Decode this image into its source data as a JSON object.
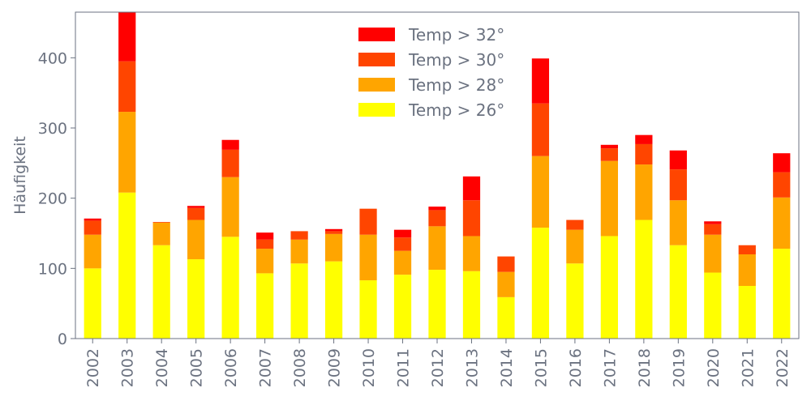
{
  "chart_data": {
    "type": "bar",
    "stacked": true,
    "ylabel": "Häufigkeit",
    "xlabel": "",
    "ylim": [
      0,
      465
    ],
    "yticks": [
      0,
      100,
      200,
      300,
      400
    ],
    "grid": false,
    "legend_position": "top-center",
    "categories": [
      "2002",
      "2003",
      "2004",
      "2005",
      "2006",
      "2007",
      "2008",
      "2009",
      "2010",
      "2011",
      "2012",
      "2013",
      "2014",
      "2015",
      "2016",
      "2017",
      "2018",
      "2019",
      "2020",
      "2021",
      "2022"
    ],
    "series": [
      {
        "name": "Temp > 26°",
        "color": "#ffff00",
        "values": [
          100,
          208,
          133,
          113,
          145,
          93,
          107,
          110,
          83,
          91,
          98,
          96,
          59,
          158,
          107,
          146,
          169,
          133,
          94,
          75,
          128
        ]
      },
      {
        "name": "Temp > 28°",
        "color": "#ffa500",
        "values": [
          48,
          115,
          32,
          56,
          85,
          35,
          34,
          39,
          65,
          34,
          62,
          50,
          36,
          102,
          48,
          107,
          79,
          64,
          54,
          45,
          73
        ]
      },
      {
        "name": "Temp > 30°",
        "color": "#ff4500",
        "values": [
          20,
          72,
          1,
          17,
          39,
          13,
          12,
          4,
          37,
          19,
          23,
          51,
          22,
          75,
          14,
          18,
          29,
          44,
          15,
          13,
          36
        ]
      },
      {
        "name": "Temp > 32°",
        "color": "#ff0000",
        "values": [
          3,
          70,
          0,
          3,
          14,
          10,
          0,
          3,
          0,
          11,
          5,
          34,
          0,
          64,
          0,
          5,
          13,
          27,
          4,
          0,
          27
        ]
      }
    ]
  }
}
